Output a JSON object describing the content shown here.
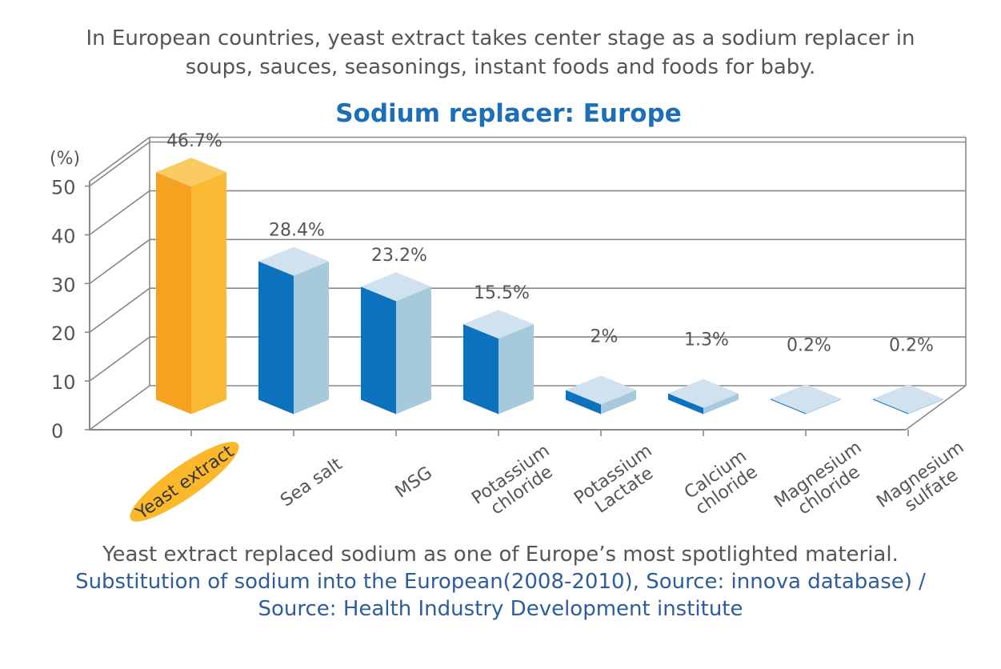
{
  "intro_lines": [
    "In European countries, yeast extract takes center stage as a sodium replacer in",
    "soups, sauces, seasonings, instant foods and foods for baby."
  ],
  "footer": {
    "caption": "Yeast extract replaced sodium as one of Europe’s most spotlighted material.",
    "source_line1": "Substitution of sodium into the European(2008-2010), Source: innova database) /",
    "source_line2": "Source: Health Industry Development institute"
  },
  "colors": {
    "highlight_front": "#f4a21f",
    "highlight_side": "#f9b933",
    "highlight_top": "#fbcb63",
    "highlight_label_bg": "#fbb82b",
    "bar_front": "#0d72bd",
    "bar_side": "#a7c9dc",
    "bar_top": "#d0e2ef",
    "grid": "#888888",
    "text": "#555555",
    "title": "#1c6fb6"
  },
  "chart_data": {
    "type": "bar",
    "title": "Sodium replacer: Europe",
    "ylabel": "(%)",
    "xlabel": "",
    "ylim": [
      0,
      50
    ],
    "yticks": [
      0,
      10,
      20,
      30,
      40,
      50
    ],
    "grid": true,
    "three_d": true,
    "categories": [
      [
        "Yeast extract"
      ],
      [
        "Sea salt"
      ],
      [
        "MSG"
      ],
      [
        "Potassium",
        "chloride"
      ],
      [
        "Potassium",
        "Lactate"
      ],
      [
        "Calcium",
        "chloride"
      ],
      [
        "Magnesium",
        "chloride"
      ],
      [
        "Magnesium",
        "sulfate"
      ]
    ],
    "values": [
      46.7,
      28.4,
      23.2,
      15.5,
      2,
      1.3,
      0.2,
      0.2
    ],
    "data_labels": [
      "46.7%",
      "28.4%",
      "23.2%",
      "15.5%",
      "2%",
      "1.3%",
      "0.2%",
      "0.2%"
    ],
    "highlighted_category": "Yeast extract"
  }
}
